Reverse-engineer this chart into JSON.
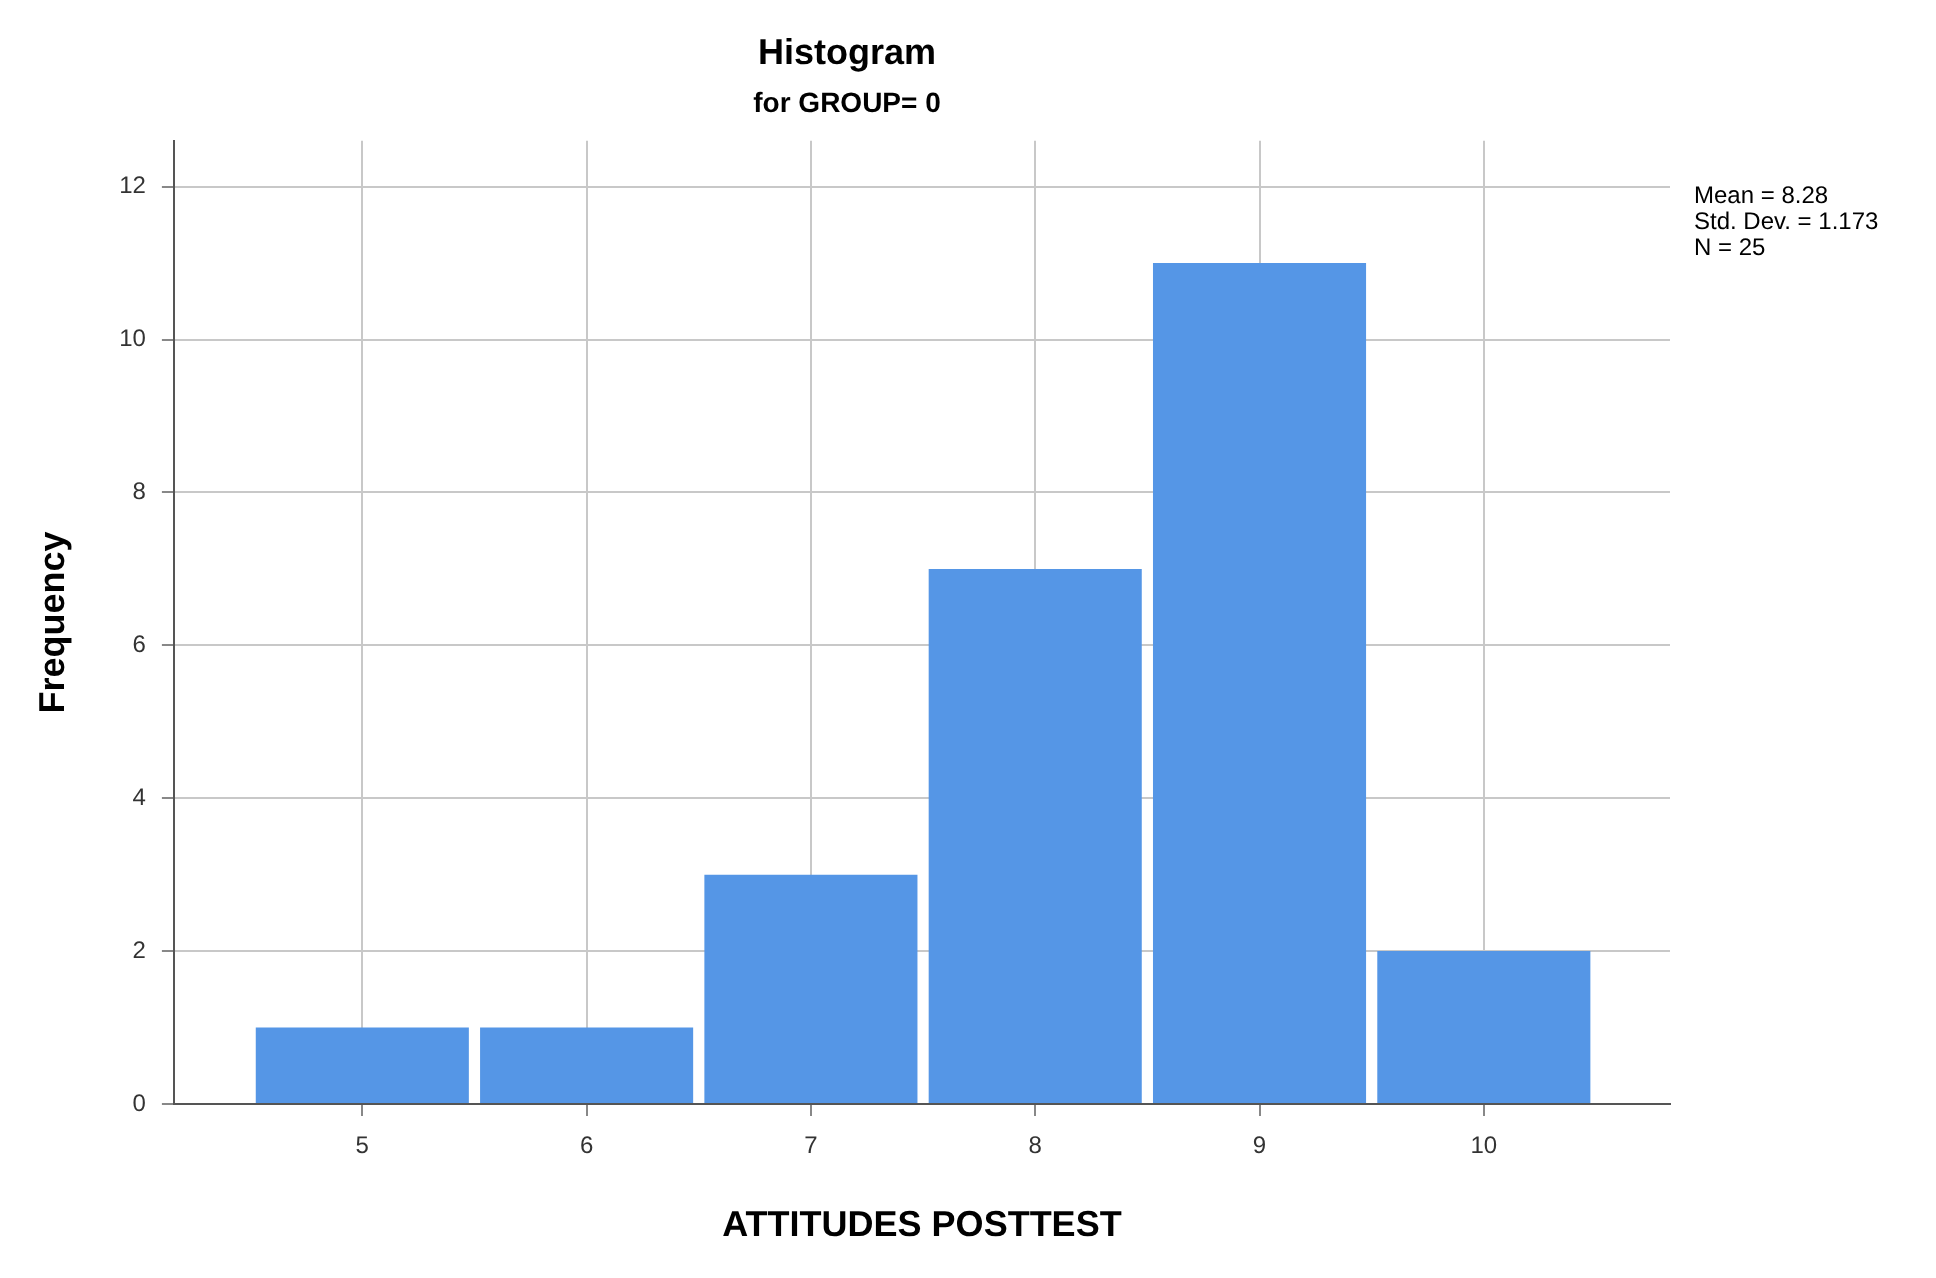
{
  "chart_data": {
    "type": "histogram",
    "title": "Histogram",
    "subtitle": "for GROUP= 0",
    "xlabel": "ATTITUDES POSTTEST",
    "ylabel": "Frequency",
    "bins": [
      4.5,
      5.5,
      6.5,
      7.5,
      8.5,
      9.5,
      10.5
    ],
    "values": [
      1,
      1,
      3,
      7,
      11,
      2
    ],
    "color": "#5596e6",
    "xlim": [
      4.16,
      10.83
    ],
    "xticks": [
      5,
      6,
      7,
      8,
      9,
      10
    ],
    "ylim": [
      0,
      12.6
    ],
    "yticks": [
      0,
      2,
      4,
      6,
      8,
      10,
      12
    ],
    "grid": true,
    "annotations": [
      "Mean = 8.28",
      "Std. Dev. = 1.173",
      "N = 25"
    ]
  }
}
